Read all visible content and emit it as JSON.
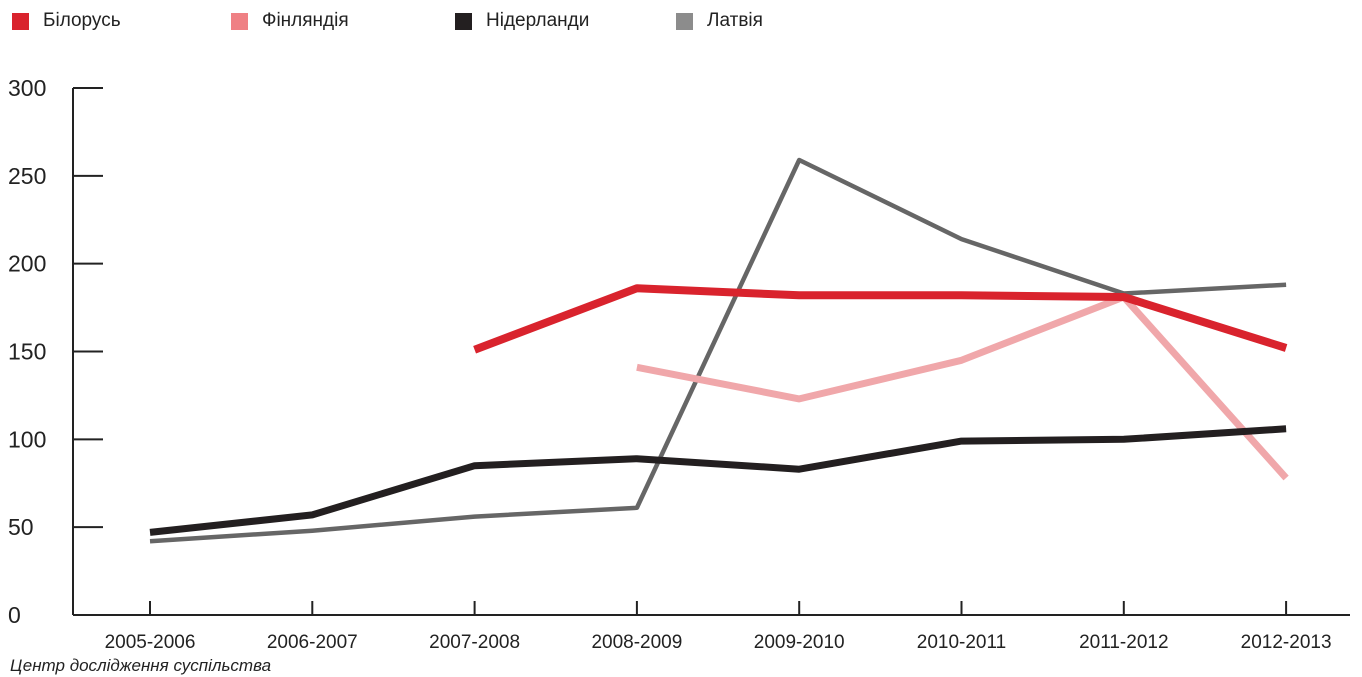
{
  "chart_data": {
    "type": "line",
    "title": "",
    "xlabel": "",
    "ylabel": "",
    "categories": [
      "2005-2006",
      "2006-2007",
      "2007-2008",
      "2008-2009",
      "2009-2010",
      "2010-2011",
      "2011-2012",
      "2012-2013"
    ],
    "ylim": [
      0,
      300
    ],
    "yticks": [
      "0",
      "50",
      "100",
      "150",
      "200",
      "250",
      "300"
    ],
    "grid": false,
    "legend_position": "top-left",
    "series": [
      {
        "name": "Білорусь",
        "color": "#d9232d",
        "values": [
          null,
          null,
          151,
          186,
          182,
          182,
          181,
          152
        ]
      },
      {
        "name": "Фінляндія",
        "color": "#f0a7aa",
        "values": [
          null,
          null,
          null,
          141,
          123,
          145,
          181,
          78
        ]
      },
      {
        "name": "Нідерланди",
        "color": "#231f20",
        "values": [
          47,
          57,
          85,
          89,
          83,
          99,
          100,
          106
        ]
      },
      {
        "name": "Латвія",
        "color": "#666666",
        "values": [
          42,
          48,
          56,
          61,
          259,
          214,
          183,
          188
        ]
      }
    ],
    "legend_swatch_colors": [
      "#d9232d",
      "#ef8084",
      "#231f20",
      "#8c8c8c"
    ]
  },
  "source_note": "Центр дослідження суспільства"
}
